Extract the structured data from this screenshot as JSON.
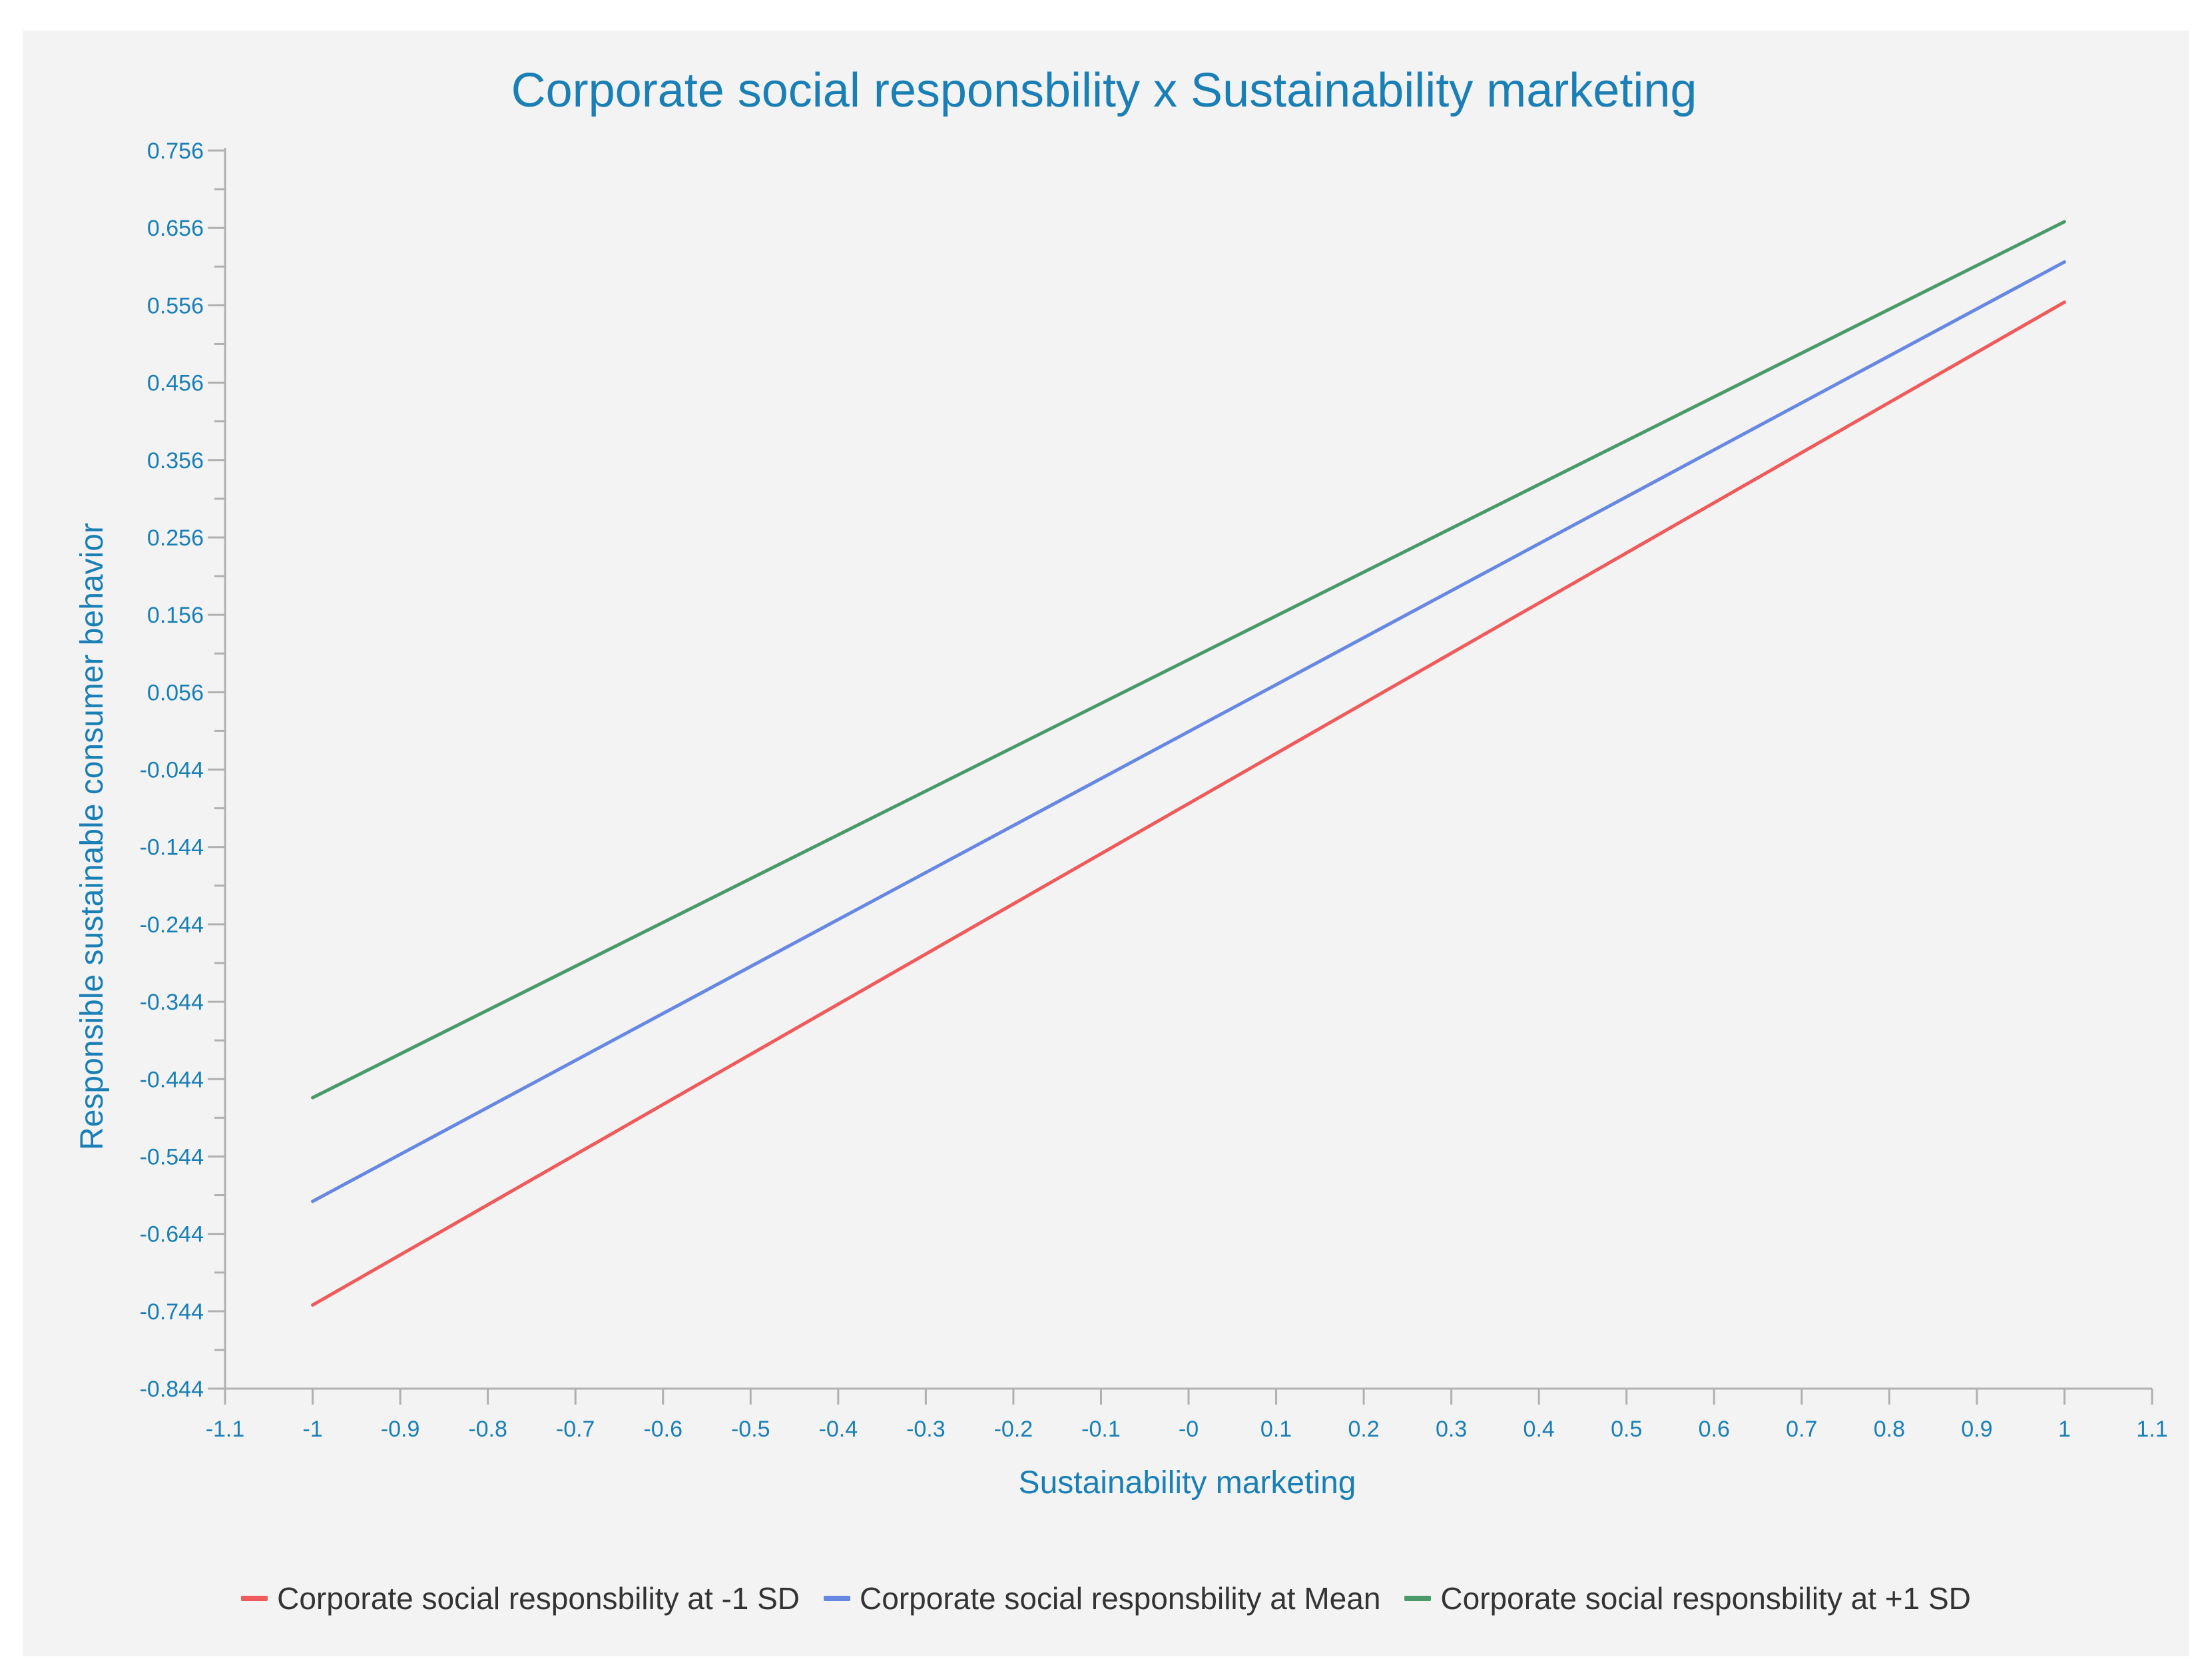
{
  "colors": {
    "accent": "#1a7fb5",
    "axis": "#b0b0b0",
    "panel": "#f3f3f3"
  },
  "chart_data": {
    "type": "line",
    "title": "Corporate social responsbility x Sustainability marketing",
    "xlabel": "Sustainability marketing",
    "ylabel": "Responsible sustainable consumer behavior",
    "xlim": [
      -1.1,
      1.1
    ],
    "ylim": [
      -0.844,
      0.756
    ],
    "grid": false,
    "legend_position": "bottom",
    "x_ticks": [
      -1.1,
      -1,
      -0.9,
      -0.8,
      -0.7,
      -0.6,
      -0.5,
      -0.4,
      -0.3,
      -0.2,
      -0.1,
      0,
      0.1,
      0.2,
      0.3,
      0.4,
      0.5,
      0.6,
      0.7,
      0.8,
      0.9,
      1,
      1.1
    ],
    "x_tick_labels": [
      "-1.1",
      "-1",
      "-0.9",
      "-0.8",
      "-0.7",
      "-0.6",
      "-0.5",
      "-0.4",
      "-0.3",
      "-0.2",
      "-0.1",
      "-0",
      "0.1",
      "0.2",
      "0.3",
      "0.4",
      "0.5",
      "0.6",
      "0.7",
      "0.8",
      "0.9",
      "1",
      "1.1"
    ],
    "y_ticks": [
      0.756,
      0.656,
      0.556,
      0.456,
      0.356,
      0.256,
      0.156,
      0.056,
      -0.044,
      -0.144,
      -0.244,
      -0.344,
      -0.444,
      -0.544,
      -0.644,
      -0.744,
      -0.844
    ],
    "y_tick_labels": [
      "0.756",
      "0.656",
      "0.556",
      "0.456",
      "0.356",
      "0.256",
      "0.156",
      "0.056",
      "-0.044",
      "-0.144",
      "-0.244",
      "-0.344",
      "-0.444",
      "-0.544",
      "-0.644",
      "-0.744",
      "-0.844"
    ],
    "series": [
      {
        "name": "Corporate social responsbility at -1 SD",
        "color": "#ef5a5a",
        "x": [
          -1,
          1
        ],
        "y": [
          -0.736,
          0.56
        ]
      },
      {
        "name": "Corporate social responsbility at Mean",
        "color": "#6688e3",
        "x": [
          -1,
          1
        ],
        "y": [
          -0.602,
          0.612
        ]
      },
      {
        "name": "Corporate social responsbility at +1 SD",
        "color": "#4a9a6a",
        "x": [
          -1,
          1
        ],
        "y": [
          -0.468,
          0.664
        ]
      }
    ]
  }
}
